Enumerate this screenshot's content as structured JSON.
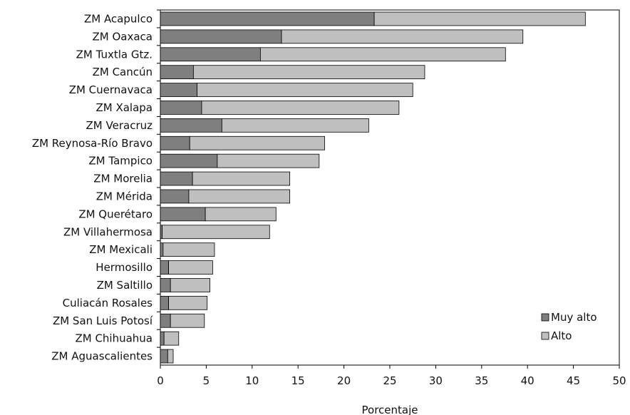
{
  "chart_data": {
    "type": "bar",
    "orientation": "horizontal",
    "stacked": true,
    "categories": [
      "ZM Acapulco",
      "ZM Oaxaca",
      "ZM Tuxtla Gtz.",
      "ZM Cancún",
      "ZM Cuernavaca",
      "ZM Xalapa",
      "ZM Veracruz",
      "ZM Reynosa-Río Bravo",
      "ZM Tampico",
      "ZM Morelia",
      "ZM Mérida",
      "ZM Querétaro",
      "ZM Villahermosa",
      "ZM Mexicali",
      "Hermosillo",
      "ZM Saltillo",
      "Culiacán Rosales",
      "ZM San Luis Potosí",
      "ZM Chihuahua",
      "ZM Aguascalientes"
    ],
    "series": [
      {
        "name": "Muy alto",
        "color": "#7f7f7f",
        "values": [
          23.3,
          13.2,
          10.9,
          3.6,
          4.0,
          4.5,
          6.7,
          3.2,
          6.2,
          3.5,
          3.1,
          4.9,
          0.2,
          0.3,
          0.9,
          1.1,
          0.9,
          1.1,
          0.4,
          0.8
        ]
      },
      {
        "name": "Alto",
        "color": "#bfbfbf",
        "values": [
          23.0,
          26.3,
          26.7,
          25.2,
          23.5,
          21.5,
          16.0,
          14.7,
          11.1,
          10.6,
          11.0,
          7.7,
          11.7,
          5.6,
          4.8,
          4.3,
          4.2,
          3.7,
          1.6,
          0.6
        ]
      }
    ],
    "xlabel": "Porcentaje",
    "xlim": [
      0,
      50
    ],
    "xticks": [
      "0",
      "5",
      "10",
      "15",
      "20",
      "25",
      "30",
      "35",
      "40",
      "45",
      "50"
    ],
    "grid": false,
    "legend": "bottom-right"
  }
}
